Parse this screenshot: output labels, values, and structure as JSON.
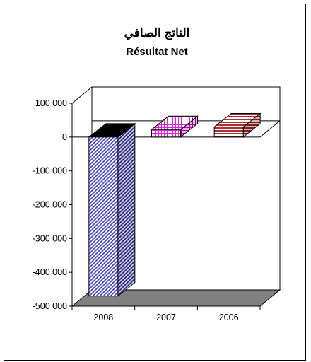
{
  "chart_data": {
    "type": "bar",
    "title": "الناتج الصافي",
    "subtitle": "Résultat Net",
    "categories": [
      "2008",
      "2007",
      "2006"
    ],
    "values": [
      -470000,
      22000,
      30000
    ],
    "ylim": [
      -500000,
      100000
    ],
    "yticks": [
      100000,
      0,
      -100000,
      -200000,
      -300000,
      -400000,
      -500000
    ],
    "ytick_labels": [
      "100 000",
      "0",
      "-100 000",
      "-200 000",
      "-300 000",
      "-400 000",
      "-500 000"
    ],
    "grid": false,
    "legend": "none",
    "three_d": true,
    "colors": {
      "bar_2008": "#3b3bc8",
      "bar_2007": "#e020e0",
      "bar_2006": "#a83232",
      "floor": "#808080"
    },
    "patterns": [
      "diagonal-stripes",
      "grid",
      "horizontal-stripes"
    ]
  }
}
